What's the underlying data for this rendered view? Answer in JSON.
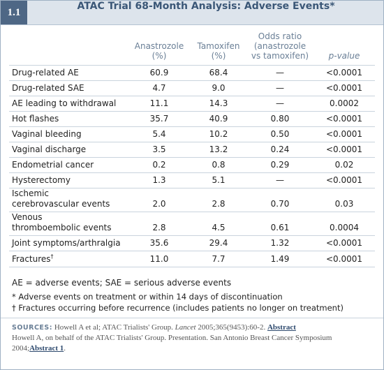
{
  "label": "1.1",
  "title": "ATAC Trial 68-Month Analysis: Adverse Events*",
  "table": {
    "columns": [
      [
        "Anastrozole",
        "(%)"
      ],
      [
        "Tamoxifen",
        "(%)"
      ],
      [
        "Odds ratio",
        "(anastrozole",
        "vs tamoxifen)"
      ],
      [
        "p-value"
      ]
    ],
    "rows": [
      {
        "label": [
          "Drug-related AE"
        ],
        "cells": [
          "60.9",
          "68.4",
          "—",
          "<0.0001"
        ]
      },
      {
        "label": [
          "Drug-related SAE"
        ],
        "cells": [
          "4.7",
          "9.0",
          "—",
          "<0.0001"
        ]
      },
      {
        "label": [
          "AE leading to withdrawal"
        ],
        "cells": [
          "11.1",
          "14.3",
          "—",
          "0.0002"
        ]
      },
      {
        "label": [
          "Hot flashes"
        ],
        "cells": [
          "35.7",
          "40.9",
          "0.80",
          "<0.0001"
        ]
      },
      {
        "label": [
          "Vaginal bleeding"
        ],
        "cells": [
          "5.4",
          "10.2",
          "0.50",
          "<0.0001"
        ]
      },
      {
        "label": [
          "Vaginal discharge"
        ],
        "cells": [
          "3.5",
          "13.2",
          "0.24",
          "<0.0001"
        ]
      },
      {
        "label": [
          "Endometrial cancer"
        ],
        "cells": [
          "0.2",
          "0.8",
          "0.29",
          "0.02"
        ]
      },
      {
        "label": [
          "Hysterectomy"
        ],
        "cells": [
          "1.3",
          "5.1",
          "—",
          "<0.0001"
        ]
      },
      {
        "label": [
          "Ischemic",
          "cerebrovascular events"
        ],
        "cells": [
          "2.0",
          "2.8",
          "0.70",
          "0.03"
        ]
      },
      {
        "label": [
          "Venous",
          "thromboembolic events"
        ],
        "cells": [
          "2.8",
          "4.5",
          "0.61",
          "0.0004"
        ]
      },
      {
        "label": [
          "Joint symptoms/arthralgia"
        ],
        "cells": [
          "35.6",
          "29.4",
          "1.32",
          "<0.0001"
        ]
      },
      {
        "label": [
          "Fractures"
        ],
        "mark": "†",
        "cells": [
          "11.0",
          "7.7",
          "1.49",
          "<0.0001"
        ]
      }
    ]
  },
  "notes": [
    "AE = adverse events; SAE = serious adverse events",
    "* Adverse events on treatment or within 14 days of discontinuation",
    "† Fractures occurring before recurrence (includes patients no longer on treatment)"
  ],
  "sources": {
    "heading": "SOURCES:",
    "items": [
      {
        "pre": "Howell A et al; ATAC Trialists' Group.",
        "journal": "Lancet",
        "post": "2005;365(9453):60-2.",
        "link": "Abstract"
      },
      {
        "pre": "Howell A, on behalf of the ATAC Trialists' Group. Presentation. San Antonio Breast Cancer Symposium 2004;",
        "link": "Abstract 1",
        "post": "."
      }
    ]
  }
}
